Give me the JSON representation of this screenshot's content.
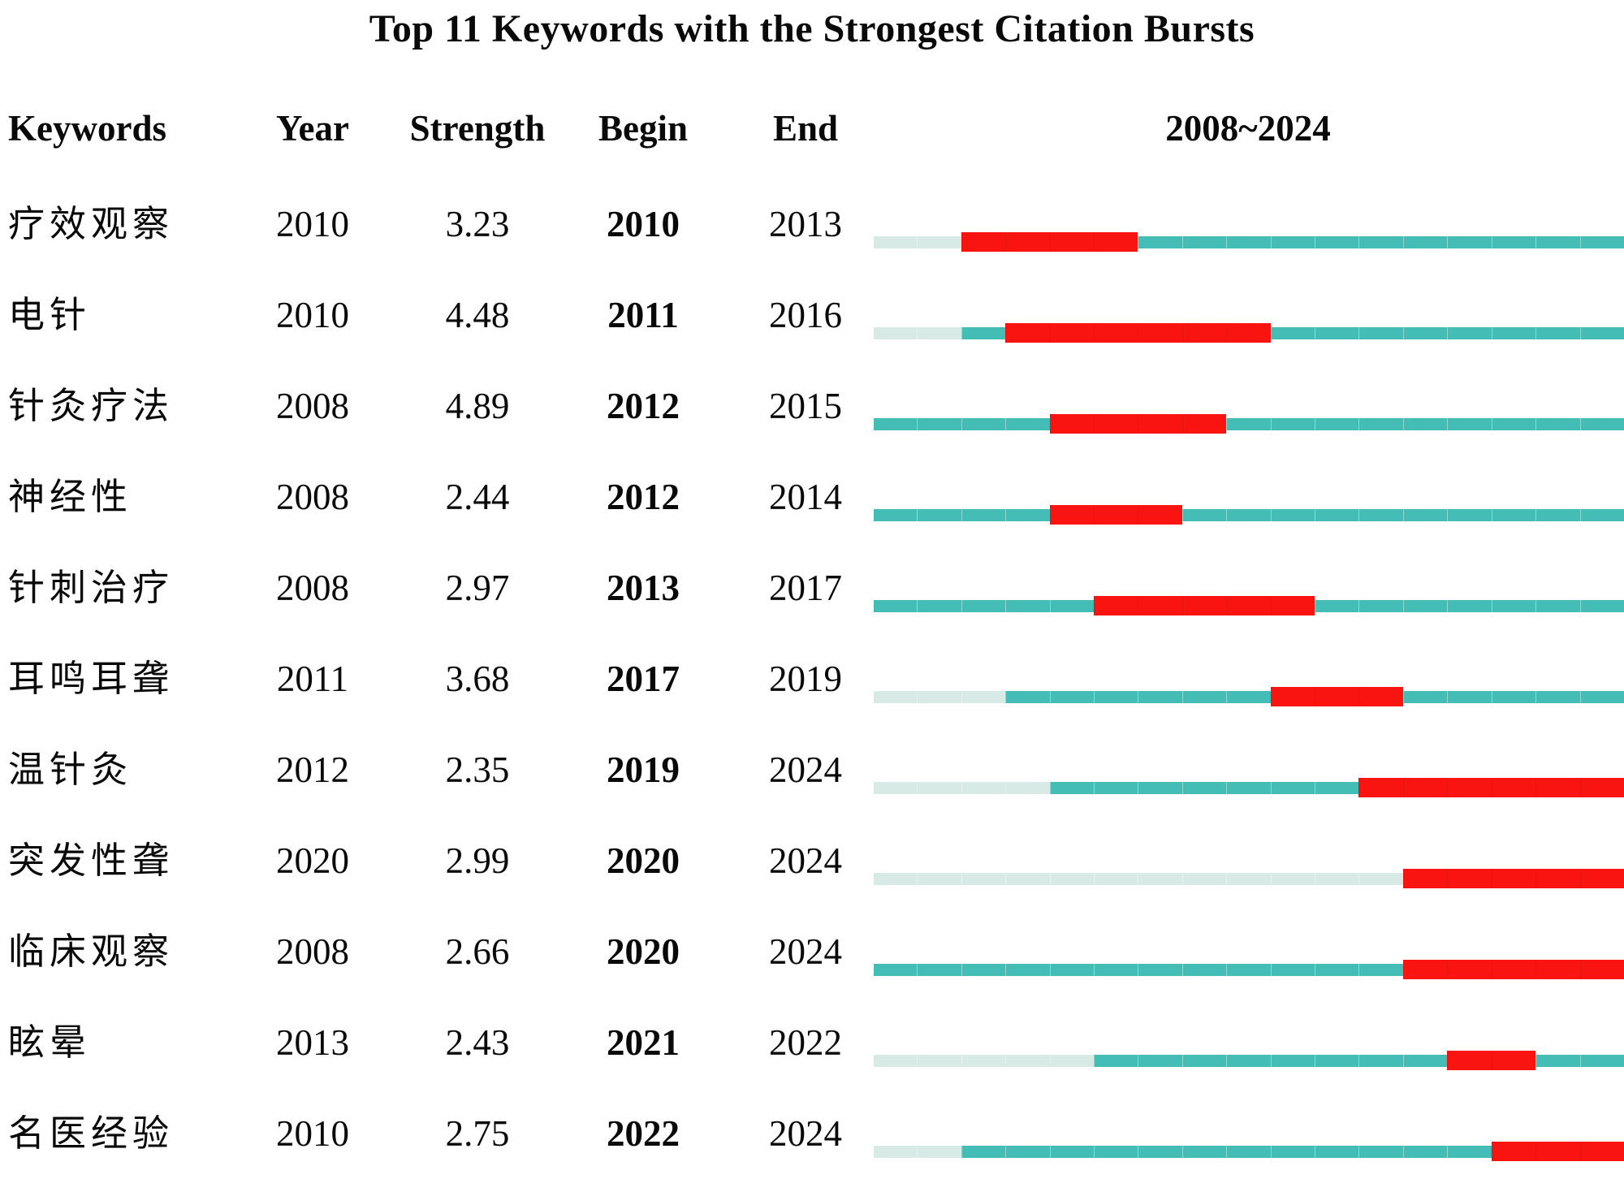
{
  "title": "Top 11 Keywords with the Strongest Citation Bursts",
  "header": {
    "keywords": "Keywords",
    "year": "Year",
    "strength": "Strength",
    "begin": "Begin",
    "end": "End",
    "range": "2008~2024"
  },
  "chart_data": {
    "type": "table",
    "title": "Top 11 Keywords with the Strongest Citation Bursts",
    "columns": [
      "Keywords",
      "Year",
      "Strength",
      "Begin",
      "End",
      "2008~2024"
    ],
    "timeline": {
      "start": 2008,
      "end": 2024,
      "label": "2008~2024"
    },
    "legend": {
      "burst_color": "#fa1410",
      "active_color": "#44bdb6",
      "inactive_color": "#d8eae6"
    },
    "rows": [
      {
        "keyword": "疗效观察",
        "year": 2010,
        "strength": "3.23",
        "begin": 2010,
        "end": 2013
      },
      {
        "keyword": "电针",
        "year": 2010,
        "strength": "4.48",
        "begin": 2011,
        "end": 2016
      },
      {
        "keyword": "针灸疗法",
        "year": 2008,
        "strength": "4.89",
        "begin": 2012,
        "end": 2015
      },
      {
        "keyword": "神经性",
        "year": 2008,
        "strength": "2.44",
        "begin": 2012,
        "end": 2014
      },
      {
        "keyword": "针刺治疗",
        "year": 2008,
        "strength": "2.97",
        "begin": 2013,
        "end": 2017
      },
      {
        "keyword": "耳鸣耳聋",
        "year": 2011,
        "strength": "3.68",
        "begin": 2017,
        "end": 2019
      },
      {
        "keyword": "温针灸",
        "year": 2012,
        "strength": "2.35",
        "begin": 2019,
        "end": 2024
      },
      {
        "keyword": "突发性聋",
        "year": 2020,
        "strength": "2.99",
        "begin": 2020,
        "end": 2024
      },
      {
        "keyword": "临床观察",
        "year": 2008,
        "strength": "2.66",
        "begin": 2020,
        "end": 2024
      },
      {
        "keyword": "眩晕",
        "year": 2013,
        "strength": "2.43",
        "begin": 2021,
        "end": 2022
      },
      {
        "keyword": "名医经验",
        "year": 2010,
        "strength": "2.75",
        "begin": 2022,
        "end": 2024
      }
    ]
  }
}
